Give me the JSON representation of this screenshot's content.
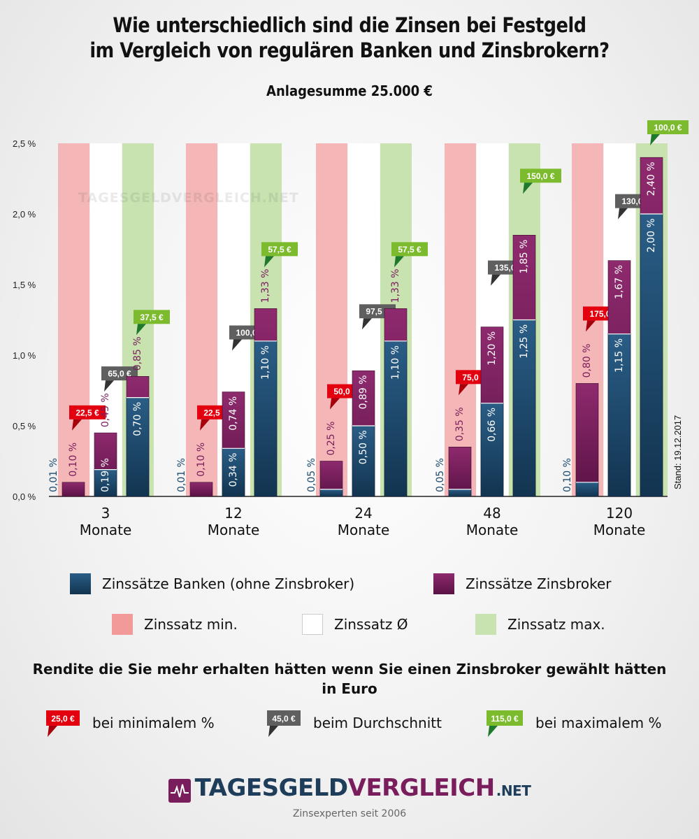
{
  "title_line1": "Wie unterschiedlich sind die Zinsen bei Festgeld",
  "title_line2": "im Vergleich von regulären Banken und Zinsbrokern?",
  "subtitle": "Anlagesumme 25.000 €",
  "watermark": "TAGESGELDVERGLEICH.NET",
  "stand": "Stand: 19.12.2017",
  "colors": {
    "banken": "#1c4a6e",
    "broker": "#7a1d5c",
    "min_band": "#f4b6b6",
    "avg_band": "#ffffff",
    "max_band": "#c8e3b0",
    "tag_min": "#e3000f",
    "tag_avg": "#5f5f5f",
    "tag_max": "#7dbb2e"
  },
  "chart_data": {
    "type": "bar",
    "ylim": [
      0,
      2.5
    ],
    "yticks": [
      "0,0 %",
      "0,5 %",
      "1,0 %",
      "1,5 %",
      "2,0 %",
      "2,5 %"
    ],
    "categories": [
      {
        "num": "3",
        "unit": "Monate"
      },
      {
        "num": "12",
        "unit": "Monate"
      },
      {
        "num": "24",
        "unit": "Monate"
      },
      {
        "num": "48",
        "unit": "Monate"
      },
      {
        "num": "120",
        "unit": "Monate"
      }
    ],
    "groups": [
      {
        "bars": [
          {
            "bank": 0.01,
            "broker": 0.1,
            "bank_label": "0,01 %",
            "broker_label": "0,10 %"
          },
          {
            "bank": 0.19,
            "broker": 0.45,
            "bank_label": "0,19 %",
            "broker_label": "0,45 %"
          },
          {
            "bank": 0.7,
            "broker": 0.85,
            "bank_label": "0,70 %",
            "broker_label": "0,85 %"
          }
        ],
        "tags": [
          "22,5 €",
          "65,0 €",
          "37,5 €"
        ]
      },
      {
        "bars": [
          {
            "bank": 0.01,
            "broker": 0.1,
            "bank_label": "0,01 %",
            "broker_label": "0,10 %"
          },
          {
            "bank": 0.34,
            "broker": 0.74,
            "bank_label": "0,34 %",
            "broker_label": "0,74 %"
          },
          {
            "bank": 1.1,
            "broker": 1.33,
            "bank_label": "1,10 %",
            "broker_label": "1,33 %"
          }
        ],
        "tags": [
          "22,5 €",
          "100,0 €",
          "57,5 €"
        ]
      },
      {
        "bars": [
          {
            "bank": 0.05,
            "broker": 0.25,
            "bank_label": "0,05 %",
            "broker_label": "0,25 %"
          },
          {
            "bank": 0.5,
            "broker": 0.89,
            "bank_label": "0,50 %",
            "broker_label": "0,89 %"
          },
          {
            "bank": 1.1,
            "broker": 1.33,
            "bank_label": "1,10 %",
            "broker_label": "1,33 %"
          }
        ],
        "tags": [
          "50,0 €",
          "97,5 €",
          "57,5 €"
        ]
      },
      {
        "bars": [
          {
            "bank": 0.05,
            "broker": 0.35,
            "bank_label": "0,05 %",
            "broker_label": "0,35 %"
          },
          {
            "bank": 0.66,
            "broker": 1.2,
            "bank_label": "0,66 %",
            "broker_label": "1,20 %"
          },
          {
            "bank": 1.25,
            "broker": 1.85,
            "bank_label": "1,25 %",
            "broker_label": "1,85 %"
          }
        ],
        "tags": [
          "75,0 €",
          "135,0 €",
          "150,0 €"
        ]
      },
      {
        "bars": [
          {
            "bank": 0.1,
            "broker": 0.8,
            "bank_label": "0,10 %",
            "broker_label": "0,80 %"
          },
          {
            "bank": 1.15,
            "broker": 1.67,
            "bank_label": "1,15 %",
            "broker_label": "1,67 %"
          },
          {
            "bank": 2.0,
            "broker": 2.4,
            "bank_label": "2,00 %",
            "broker_label": "2,40 %"
          }
        ],
        "tags": [
          "175,0 €",
          "130,0 €",
          "100,0 €"
        ]
      }
    ]
  },
  "legend": {
    "banken": "Zinssätze Banken (ohne Zinsbroker)",
    "broker": "Zinssätze Zinsbroker",
    "min": "Zinssatz min.",
    "avg": "Zinssatz Ø",
    "max": "Zinssatz max."
  },
  "note": {
    "line1": "Rendite die Sie mehr erhalten hätten wenn Sie einen Zinsbroker gewählt hätten",
    "line2": "in Euro",
    "min_tag": "25,0 €",
    "min_label": "bei minimalem %",
    "avg_tag": "45,0 €",
    "avg_label": "beim Durchschnitt",
    "max_tag": "115,0 €",
    "max_label": "bei maximalem %"
  },
  "footer": {
    "logo_a": "TAGESGELD",
    "logo_b": "VERGLEICH",
    "logo_net": ".NET",
    "tagline": "Zinsexperten seit 2006"
  }
}
